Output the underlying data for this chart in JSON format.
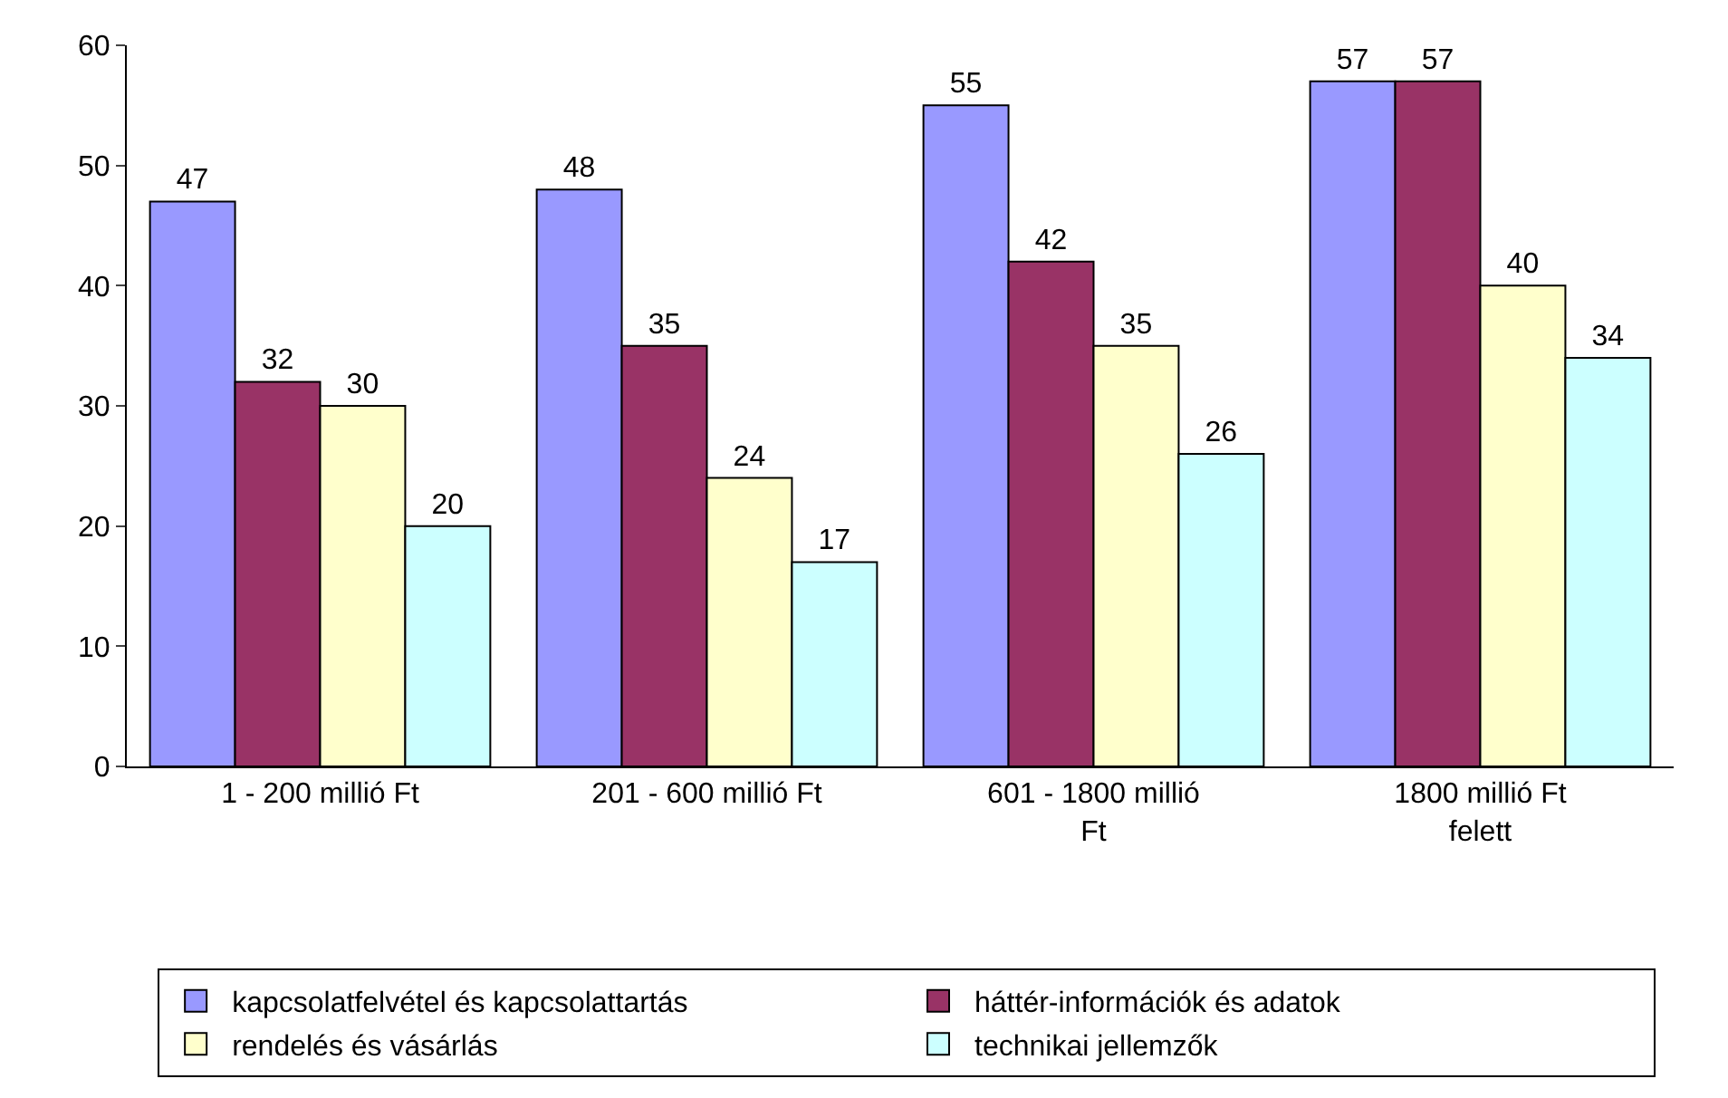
{
  "chart_data": {
    "type": "bar",
    "categories": [
      "1 - 200 millió Ft",
      "201 - 600 millió Ft",
      "601 - 1800 millió Ft",
      "1800 millió Ft felett"
    ],
    "series": [
      {
        "name": "kapcsolatfelvétel és kapcsolattartás",
        "color": "#9999ff",
        "values": [
          47,
          48,
          55,
          57
        ]
      },
      {
        "name": "háttér-információk és adatok",
        "color": "#993366",
        "values": [
          32,
          35,
          42,
          57
        ]
      },
      {
        "name": "rendelés és vásárlás",
        "color": "#ffffcc",
        "values": [
          30,
          24,
          35,
          40
        ]
      },
      {
        "name": "technikai jellemzők",
        "color": "#ccffff",
        "values": [
          20,
          17,
          26,
          34
        ]
      }
    ],
    "ylim": [
      0,
      60
    ],
    "yticks": [
      0,
      10,
      20,
      30,
      40,
      50,
      60
    ],
    "data_labels": true,
    "legend": "bottom"
  }
}
